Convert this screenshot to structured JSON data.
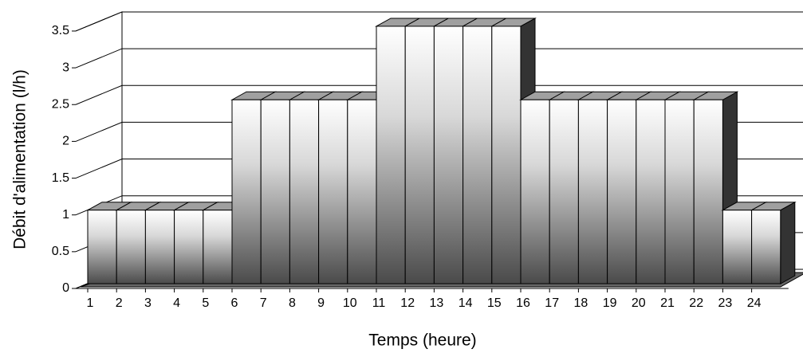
{
  "chart_data": {
    "type": "bar3d",
    "x_label": "Temps (heure)",
    "y_label": "Débit d'alimentation (l/h)",
    "categories": [
      "1",
      "2",
      "3",
      "4",
      "5",
      "6",
      "7",
      "8",
      "9",
      "10",
      "11",
      "12",
      "13",
      "14",
      "15",
      "16",
      "17",
      "18",
      "19",
      "20",
      "21",
      "22",
      "23",
      "24"
    ],
    "values": [
      1,
      1,
      1,
      1,
      1,
      2.5,
      2.5,
      2.5,
      2.5,
      2.5,
      3.5,
      3.5,
      3.5,
      3.5,
      3.5,
      2.5,
      2.5,
      2.5,
      2.5,
      2.5,
      2.5,
      2.5,
      1,
      1
    ],
    "ylim": [
      0,
      3.5
    ],
    "yticks": [
      0,
      0.5,
      1,
      1.5,
      2,
      2.5,
      3,
      3.5
    ],
    "grid": true
  }
}
